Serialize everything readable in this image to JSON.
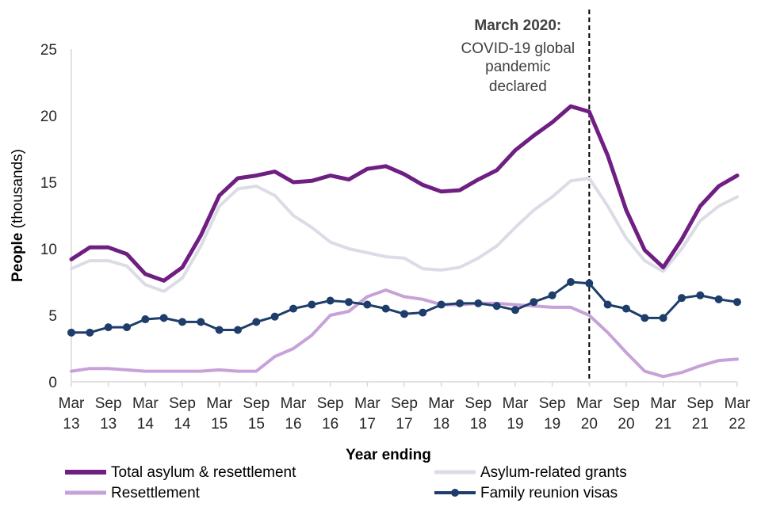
{
  "chart_data": {
    "type": "line",
    "xlabel": "Year ending",
    "ylabel_bold": "People",
    "ylabel_rest": " (thousands)",
    "ylim": [
      0,
      25
    ],
    "yticks": [
      "0",
      "5",
      "10",
      "15",
      "20",
      "25"
    ],
    "grid": false,
    "legend_position": "bottom",
    "tick_labels": [
      {
        "month": "Mar",
        "year": "13"
      },
      {
        "month": "Sep",
        "year": "13"
      },
      {
        "month": "Mar",
        "year": "14"
      },
      {
        "month": "Sep",
        "year": "14"
      },
      {
        "month": "Mar",
        "year": "15"
      },
      {
        "month": "Sep",
        "year": "15"
      },
      {
        "month": "Mar",
        "year": "16"
      },
      {
        "month": "Sep",
        "year": "16"
      },
      {
        "month": "Mar",
        "year": "17"
      },
      {
        "month": "Sep",
        "year": "17"
      },
      {
        "month": "Mar",
        "year": "18"
      },
      {
        "month": "Sep",
        "year": "18"
      },
      {
        "month": "Mar",
        "year": "19"
      },
      {
        "month": "Sep",
        "year": "19"
      },
      {
        "month": "Mar",
        "year": "20"
      },
      {
        "month": "Sep",
        "year": "20"
      },
      {
        "month": "Mar",
        "year": "21"
      },
      {
        "month": "Sep",
        "year": "21"
      },
      {
        "month": "Mar",
        "year": "22"
      }
    ],
    "x": [
      "Mar 13",
      "Jun 13",
      "Sep 13",
      "Dec 13",
      "Mar 14",
      "Jun 14",
      "Sep 14",
      "Dec 14",
      "Mar 15",
      "Jun 15",
      "Sep 15",
      "Dec 15",
      "Mar 16",
      "Jun 16",
      "Sep 16",
      "Dec 16",
      "Mar 17",
      "Jun 17",
      "Sep 17",
      "Dec 17",
      "Mar 18",
      "Jun 18",
      "Sep 18",
      "Dec 18",
      "Mar 19",
      "Jun 19",
      "Sep 19",
      "Dec 19",
      "Mar 20",
      "Jun 20",
      "Sep 20",
      "Dec 20",
      "Mar 21",
      "Jun 21",
      "Sep 21",
      "Dec 21",
      "Mar 22"
    ],
    "series": [
      {
        "name": "Total asylum & resettlement",
        "color": "#6f1e82",
        "width": 5,
        "markers": false,
        "values": [
          9.2,
          10.1,
          10.1,
          9.6,
          8.1,
          7.6,
          8.6,
          11.0,
          14.0,
          15.3,
          15.5,
          15.8,
          15.0,
          15.1,
          15.5,
          15.2,
          16.0,
          16.2,
          15.6,
          14.8,
          14.3,
          14.4,
          15.2,
          15.9,
          17.4,
          18.5,
          19.5,
          20.7,
          20.3,
          17.0,
          12.9,
          9.9,
          8.6,
          10.7,
          13.2,
          14.7,
          15.5
        ]
      },
      {
        "name": "Asylum-related grants",
        "color": "#dcdce6",
        "width": 4,
        "markers": false,
        "values": [
          8.5,
          9.1,
          9.1,
          8.7,
          7.3,
          6.8,
          7.8,
          10.2,
          13.2,
          14.5,
          14.7,
          14.0,
          12.5,
          11.6,
          10.5,
          10.0,
          9.7,
          9.4,
          9.3,
          8.5,
          8.4,
          8.6,
          9.3,
          10.2,
          11.6,
          12.9,
          13.9,
          15.1,
          15.3,
          13.2,
          10.8,
          9.1,
          8.3,
          10.0,
          12.1,
          13.2,
          13.9
        ]
      },
      {
        "name": "Resettlement",
        "color": "#c7a2d9",
        "width": 4,
        "markers": false,
        "values": [
          0.8,
          1.0,
          1.0,
          0.9,
          0.8,
          0.8,
          0.8,
          0.8,
          0.9,
          0.8,
          0.8,
          1.9,
          2.5,
          3.5,
          5.0,
          5.3,
          6.4,
          6.9,
          6.4,
          6.2,
          5.8,
          5.8,
          5.9,
          5.9,
          5.8,
          5.7,
          5.6,
          5.6,
          5.0,
          3.7,
          2.2,
          0.8,
          0.4,
          0.7,
          1.2,
          1.6,
          1.7
        ]
      },
      {
        "name": "Family reunion visas",
        "color": "#1f3d6b",
        "width": 3,
        "markers": true,
        "values": [
          3.7,
          3.7,
          4.1,
          4.1,
          4.7,
          4.8,
          4.5,
          4.5,
          3.9,
          3.9,
          4.5,
          4.9,
          5.5,
          5.8,
          6.1,
          6.0,
          5.8,
          5.5,
          5.1,
          5.2,
          5.8,
          5.9,
          5.9,
          5.7,
          5.4,
          6.0,
          6.5,
          7.5,
          7.4,
          5.8,
          5.5,
          4.8,
          4.8,
          6.3,
          6.5,
          6.2,
          6.0
        ]
      }
    ],
    "annotation": {
      "at": "Mar 20",
      "line_style": "dashed",
      "title": "March 2020:",
      "lines": [
        "COVID-19 global",
        "pandemic",
        "declared"
      ]
    },
    "legend": [
      {
        "series": 0
      },
      {
        "series": 1
      },
      {
        "series": 2
      },
      {
        "series": 3
      }
    ]
  }
}
